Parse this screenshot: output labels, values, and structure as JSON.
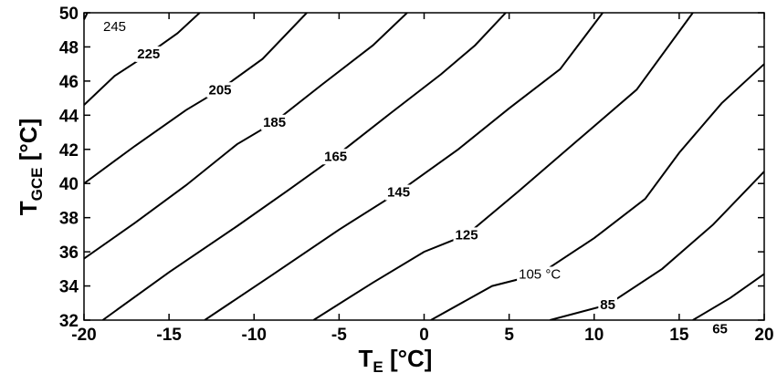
{
  "chart_data": {
    "type": "line",
    "subtype": "contour",
    "title": "",
    "xlabel_main": "T",
    "xlabel_sub": "E",
    "xlabel_unit": " [°C]",
    "ylabel_main": "T",
    "ylabel_sub": "GCE",
    "ylabel_unit": " [°C]",
    "xlim": [
      -20,
      20
    ],
    "ylim": [
      32,
      50
    ],
    "xticks": [
      -20,
      -15,
      -10,
      -5,
      0,
      5,
      10,
      15,
      20
    ],
    "yticks": [
      32,
      34,
      36,
      38,
      40,
      42,
      44,
      46,
      48,
      50
    ],
    "grid": false,
    "series": [
      {
        "name": "245",
        "label_text": "245",
        "label_at": [
          -18.2,
          49.2
        ],
        "label_bold": false,
        "points": [
          [
            -20,
            49.6
          ],
          [
            -19.8,
            50
          ]
        ]
      },
      {
        "name": "225",
        "label_text": "225",
        "label_at": [
          -16.2,
          47.6
        ],
        "label_bold": true,
        "points": [
          [
            -20,
            44.6
          ],
          [
            -18.2,
            46.3
          ],
          [
            -16.2,
            47.6
          ],
          [
            -14.5,
            48.8
          ],
          [
            -13.2,
            50
          ]
        ]
      },
      {
        "name": "205",
        "label_text": "205",
        "label_at": [
          -12.0,
          45.5
        ],
        "label_bold": true,
        "points": [
          [
            -20,
            40.0
          ],
          [
            -17,
            42.2
          ],
          [
            -14,
            44.3
          ],
          [
            -12,
            45.5
          ],
          [
            -9.5,
            47.3
          ],
          [
            -6.9,
            50
          ]
        ]
      },
      {
        "name": "185",
        "label_text": "185",
        "label_at": [
          -8.8,
          43.6
        ],
        "label_bold": true,
        "points": [
          [
            -20,
            35.6
          ],
          [
            -17,
            37.7
          ],
          [
            -14,
            39.9
          ],
          [
            -11,
            42.3
          ],
          [
            -8.8,
            43.6
          ],
          [
            -6,
            45.8
          ],
          [
            -3,
            48.1
          ],
          [
            -1.0,
            50
          ]
        ]
      },
      {
        "name": "165",
        "label_text": "165",
        "label_at": [
          -5.2,
          41.6
        ],
        "label_bold": true,
        "points": [
          [
            -18.9,
            32
          ],
          [
            -15,
            34.8
          ],
          [
            -11,
            37.5
          ],
          [
            -8,
            39.6
          ],
          [
            -5.2,
            41.6
          ],
          [
            -2,
            44.1
          ],
          [
            1,
            46.4
          ],
          [
            3,
            48.1
          ],
          [
            4.8,
            50
          ]
        ]
      },
      {
        "name": "145",
        "label_text": "145",
        "label_at": [
          -1.5,
          39.5
        ],
        "label_bold": true,
        "points": [
          [
            -12.9,
            32
          ],
          [
            -9,
            34.6
          ],
          [
            -5,
            37.3
          ],
          [
            -1.5,
            39.5
          ],
          [
            2,
            42.0
          ],
          [
            5,
            44.4
          ],
          [
            8,
            46.7
          ],
          [
            10.5,
            50
          ]
        ]
      },
      {
        "name": "125",
        "label_text": "125",
        "label_at": [
          2.5,
          37.0
        ],
        "label_bold": true,
        "points": [
          [
            -6.5,
            32
          ],
          [
            -3,
            34.2
          ],
          [
            0,
            36.0
          ],
          [
            2.5,
            37.0
          ],
          [
            5.5,
            39.5
          ],
          [
            9,
            42.5
          ],
          [
            12.5,
            45.5
          ],
          [
            15.8,
            50
          ]
        ]
      },
      {
        "name": "105",
        "label_text": "105 °C",
        "label_at": [
          6.8,
          34.7
        ],
        "label_bold": false,
        "points": [
          [
            0.4,
            32
          ],
          [
            4,
            34.0
          ],
          [
            6.8,
            34.7
          ],
          [
            10,
            36.8
          ],
          [
            13,
            39.1
          ],
          [
            15,
            41.8
          ],
          [
            17.5,
            44.7
          ],
          [
            20,
            47.0
          ]
        ]
      },
      {
        "name": "85",
        "label_text": "85",
        "label_at": [
          10.8,
          32.9
        ],
        "label_bold": true,
        "points": [
          [
            7.4,
            32
          ],
          [
            10.8,
            32.9
          ],
          [
            14,
            35.0
          ],
          [
            17,
            37.6
          ],
          [
            20,
            40.7
          ]
        ]
      },
      {
        "name": "65",
        "label_text": "65",
        "label_at": [
          17.4,
          31.5
        ],
        "label_bold": true,
        "points": [
          [
            15.8,
            32
          ],
          [
            18,
            33.3
          ],
          [
            20,
            34.7
          ]
        ]
      }
    ]
  }
}
